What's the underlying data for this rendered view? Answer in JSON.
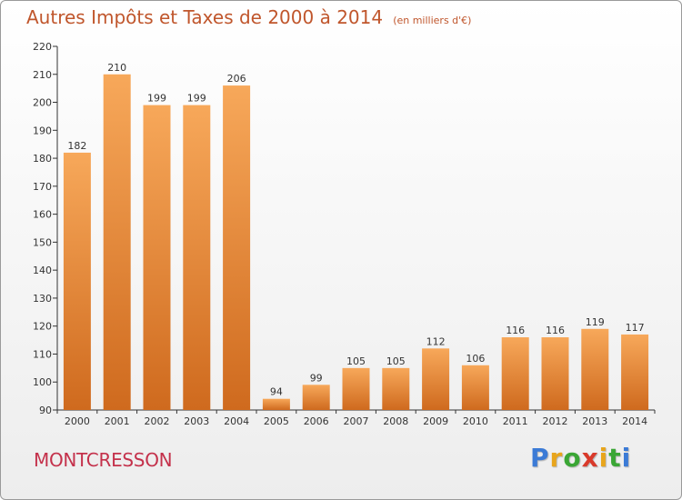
{
  "title": "Autres Impôts et Taxes de 2000 à 2014",
  "subtitle": "(en milliers d'€)",
  "commune": "MONTCRESSON",
  "brand": {
    "text": "Proxiti",
    "letter_colors": [
      "#3b7bd6",
      "#e8a51c",
      "#3aa635",
      "#d93a2b",
      "#e8a51c",
      "#3aa635",
      "#3b7bd6"
    ]
  },
  "colors": {
    "bar_top": "#f7a85a",
    "bar_bottom": "#cf6a1e",
    "title": "#c0562c",
    "commune": "#c4314b",
    "axis": "#333333",
    "grid": "#cccccc"
  },
  "chart_data": {
    "type": "bar",
    "categories": [
      "2000",
      "2001",
      "2002",
      "2003",
      "2004",
      "2005",
      "2006",
      "2007",
      "2008",
      "2009",
      "2010",
      "2011",
      "2012",
      "2013",
      "2014"
    ],
    "values": [
      182,
      210,
      199,
      199,
      206,
      94,
      99,
      105,
      105,
      112,
      106,
      116,
      116,
      119,
      117
    ],
    "ylim": [
      90,
      220
    ],
    "yticks": [
      90,
      100,
      110,
      120,
      130,
      140,
      150,
      160,
      170,
      180,
      190,
      200,
      210,
      220
    ],
    "grid": false,
    "legend": "none"
  }
}
